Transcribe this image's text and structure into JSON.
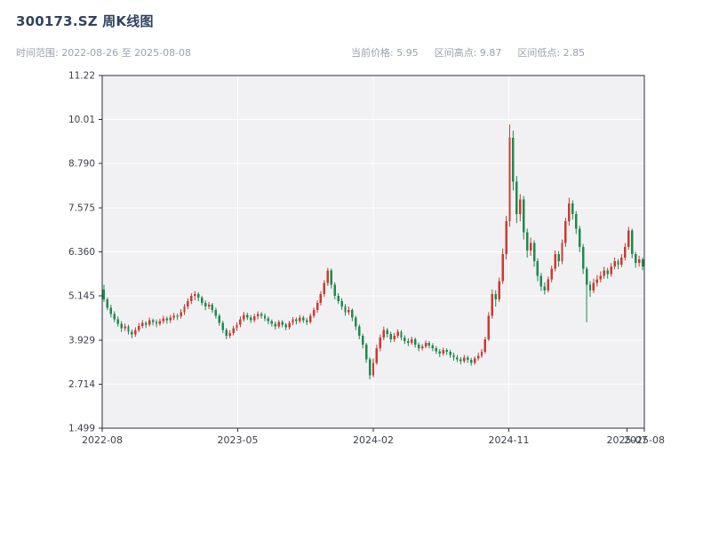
{
  "header": {
    "title": "300173.SZ 周K线图",
    "time_range": "时间范围: 2022-08-26 至 2025-08-08",
    "stats": [
      "当前价格: 5.95",
      "区间高点: 9.87",
      "区间低点: 2.85"
    ]
  },
  "colors": {
    "up": "#cc3a30",
    "down": "#1d8a4e",
    "plot_bg": "#f1f1f3",
    "grid": "#ffffff",
    "axis": "#2b2f36",
    "tick_text": "#3c4048",
    "title": "#32425e",
    "muted": "#9aa1ad"
  },
  "chart_data": {
    "type": "candlestick",
    "title": "300173.SZ 周K线图",
    "interval": "weekly",
    "start_date": "2022-08-26",
    "end_date": "2025-08-08",
    "current_price": 5.95,
    "range_high": 9.87,
    "range_low": 2.85,
    "xlabel": "",
    "ylabel": "",
    "grid": true,
    "ylim": [
      1.499,
      11.22
    ],
    "y_ticks": [
      "1.499",
      "2.714",
      "3.929",
      "5.145",
      "6.360",
      "7.575",
      "8.790",
      "10.01",
      "11.22"
    ],
    "x_ticks": [
      {
        "label": "2022-08",
        "pos": 0.0,
        "grid": true
      },
      {
        "label": "2023-05",
        "pos": 0.25,
        "grid": true
      },
      {
        "label": "2024-02",
        "pos": 0.5,
        "grid": true
      },
      {
        "label": "2024-11",
        "pos": 0.75,
        "grid": true
      },
      {
        "label": "2025-07",
        "pos": 0.968,
        "grid": false
      },
      {
        "label": "2025-08",
        "pos": 1.0,
        "grid": true
      }
    ],
    "candles": [
      [
        5.32,
        5.45,
        4.98,
        5.05
      ],
      [
        5.05,
        5.1,
        4.75,
        4.82
      ],
      [
        4.82,
        4.9,
        4.55,
        4.65
      ],
      [
        4.65,
        4.72,
        4.42,
        4.5
      ],
      [
        4.5,
        4.58,
        4.3,
        4.38
      ],
      [
        4.38,
        4.45,
        4.15,
        4.25
      ],
      [
        4.25,
        4.38,
        4.18,
        4.3
      ],
      [
        4.3,
        4.35,
        4.08,
        4.15
      ],
      [
        4.15,
        4.22,
        3.98,
        4.08
      ],
      [
        4.08,
        4.28,
        4.02,
        4.2
      ],
      [
        4.2,
        4.4,
        4.15,
        4.32
      ],
      [
        4.32,
        4.48,
        4.25,
        4.4
      ],
      [
        4.4,
        4.45,
        4.26,
        4.35
      ],
      [
        4.35,
        4.55,
        4.3,
        4.48
      ],
      [
        4.48,
        4.52,
        4.33,
        4.42
      ],
      [
        4.42,
        4.5,
        4.28,
        4.38
      ],
      [
        4.38,
        4.52,
        4.32,
        4.45
      ],
      [
        4.45,
        4.6,
        4.38,
        4.52
      ],
      [
        4.52,
        4.58,
        4.38,
        4.47
      ],
      [
        4.47,
        4.62,
        4.4,
        4.55
      ],
      [
        4.55,
        4.68,
        4.48,
        4.6
      ],
      [
        4.6,
        4.66,
        4.48,
        4.58
      ],
      [
        4.58,
        4.78,
        4.52,
        4.7
      ],
      [
        4.7,
        4.92,
        4.62,
        4.85
      ],
      [
        4.85,
        5.08,
        4.78,
        5.0
      ],
      [
        5.0,
        5.22,
        4.92,
        5.15
      ],
      [
        5.15,
        5.28,
        5.02,
        5.2
      ],
      [
        5.2,
        5.25,
        5.0,
        5.1
      ],
      [
        5.1,
        5.15,
        4.88,
        4.95
      ],
      [
        4.95,
        5.02,
        4.75,
        4.85
      ],
      [
        4.85,
        4.98,
        4.78,
        4.9
      ],
      [
        4.9,
        4.95,
        4.68,
        4.75
      ],
      [
        4.75,
        4.82,
        4.52,
        4.6
      ],
      [
        4.6,
        4.65,
        4.32,
        4.4
      ],
      [
        4.4,
        4.46,
        4.12,
        4.2
      ],
      [
        4.2,
        4.26,
        3.95,
        4.05
      ],
      [
        4.05,
        4.2,
        3.98,
        4.12
      ],
      [
        4.12,
        4.32,
        4.06,
        4.25
      ],
      [
        4.25,
        4.42,
        4.18,
        4.35
      ],
      [
        4.35,
        4.58,
        4.28,
        4.5
      ],
      [
        4.5,
        4.7,
        4.44,
        4.62
      ],
      [
        4.62,
        4.68,
        4.48,
        4.55
      ],
      [
        4.55,
        4.62,
        4.4,
        4.48
      ],
      [
        4.48,
        4.65,
        4.42,
        4.58
      ],
      [
        4.58,
        4.72,
        4.5,
        4.65
      ],
      [
        4.65,
        4.7,
        4.52,
        4.6
      ],
      [
        4.6,
        4.66,
        4.45,
        4.52
      ],
      [
        4.52,
        4.58,
        4.36,
        4.45
      ],
      [
        4.45,
        4.5,
        4.3,
        4.38
      ],
      [
        4.38,
        4.44,
        4.22,
        4.3
      ],
      [
        4.3,
        4.48,
        4.25,
        4.42
      ],
      [
        4.42,
        4.48,
        4.28,
        4.35
      ],
      [
        4.35,
        4.4,
        4.2,
        4.28
      ],
      [
        4.28,
        4.46,
        4.22,
        4.4
      ],
      [
        4.4,
        4.56,
        4.34,
        4.5
      ],
      [
        4.5,
        4.55,
        4.36,
        4.45
      ],
      [
        4.45,
        4.62,
        4.4,
        4.55
      ],
      [
        4.55,
        4.6,
        4.4,
        4.48
      ],
      [
        4.48,
        4.54,
        4.34,
        4.42
      ],
      [
        4.42,
        4.66,
        4.38,
        4.6
      ],
      [
        4.6,
        4.82,
        4.54,
        4.75
      ],
      [
        4.75,
        5.02,
        4.68,
        4.95
      ],
      [
        4.95,
        5.28,
        4.88,
        5.2
      ],
      [
        5.2,
        5.58,
        5.12,
        5.5
      ],
      [
        5.5,
        5.92,
        5.42,
        5.85
      ],
      [
        5.85,
        5.9,
        5.35,
        5.45
      ],
      [
        5.45,
        5.52,
        5.05,
        5.15
      ],
      [
        5.15,
        5.22,
        4.92,
        5.0
      ],
      [
        5.0,
        5.08,
        4.76,
        4.85
      ],
      [
        4.85,
        4.92,
        4.6,
        4.7
      ],
      [
        4.7,
        4.85,
        4.62,
        4.75
      ],
      [
        4.75,
        4.8,
        4.45,
        4.55
      ],
      [
        4.55,
        4.6,
        4.2,
        4.3
      ],
      [
        4.3,
        4.36,
        3.95,
        4.05
      ],
      [
        4.05,
        4.1,
        3.7,
        3.8
      ],
      [
        3.8,
        3.85,
        3.3,
        3.4
      ],
      [
        3.4,
        3.45,
        2.85,
        2.95
      ],
      [
        2.95,
        3.42,
        2.9,
        3.3
      ],
      [
        3.3,
        3.8,
        3.25,
        3.7
      ],
      [
        3.7,
        4.08,
        3.62,
        4.0
      ],
      [
        4.0,
        4.3,
        3.92,
        4.2
      ],
      [
        4.2,
        4.26,
        4.0,
        4.1
      ],
      [
        4.1,
        4.16,
        3.86,
        3.95
      ],
      [
        3.95,
        4.12,
        3.88,
        4.05
      ],
      [
        4.05,
        4.22,
        3.98,
        4.15
      ],
      [
        4.15,
        4.2,
        3.92,
        4.0
      ],
      [
        4.0,
        4.06,
        3.82,
        3.9
      ],
      [
        3.9,
        3.98,
        3.76,
        3.85
      ],
      [
        3.85,
        4.02,
        3.8,
        3.95
      ],
      [
        3.95,
        4.0,
        3.72,
        3.8
      ],
      [
        3.8,
        3.86,
        3.62,
        3.7
      ],
      [
        3.7,
        3.82,
        3.64,
        3.75
      ],
      [
        3.75,
        3.92,
        3.7,
        3.85
      ],
      [
        3.85,
        3.9,
        3.7,
        3.78
      ],
      [
        3.78,
        3.84,
        3.62,
        3.7
      ],
      [
        3.7,
        3.76,
        3.54,
        3.62
      ],
      [
        3.62,
        3.68,
        3.46,
        3.55
      ],
      [
        3.55,
        3.72,
        3.5,
        3.65
      ],
      [
        3.65,
        3.7,
        3.52,
        3.6
      ],
      [
        3.6,
        3.66,
        3.44,
        3.52
      ],
      [
        3.52,
        3.58,
        3.36,
        3.45
      ],
      [
        3.45,
        3.52,
        3.32,
        3.4
      ],
      [
        3.4,
        3.46,
        3.26,
        3.35
      ],
      [
        3.35,
        3.52,
        3.3,
        3.45
      ],
      [
        3.45,
        3.5,
        3.3,
        3.38
      ],
      [
        3.38,
        3.44,
        3.22,
        3.3
      ],
      [
        3.3,
        3.48,
        3.25,
        3.42
      ],
      [
        3.42,
        3.58,
        3.36,
        3.5
      ],
      [
        3.5,
        3.68,
        3.44,
        3.6
      ],
      [
        3.6,
        4.02,
        3.55,
        3.95
      ],
      [
        3.95,
        4.7,
        3.9,
        4.6
      ],
      [
        4.6,
        5.32,
        4.52,
        5.2
      ],
      [
        5.2,
        5.3,
        4.85,
        5.05
      ],
      [
        5.05,
        5.65,
        4.98,
        5.55
      ],
      [
        5.55,
        6.45,
        5.48,
        6.3
      ],
      [
        6.3,
        7.35,
        6.15,
        7.2
      ],
      [
        7.2,
        9.87,
        7.05,
        9.5
      ],
      [
        9.5,
        9.7,
        8.05,
        8.3
      ],
      [
        8.3,
        8.45,
        7.15,
        7.4
      ],
      [
        7.4,
        7.95,
        7.2,
        7.8
      ],
      [
        7.8,
        7.9,
        6.7,
        6.9
      ],
      [
        6.9,
        7.0,
        6.2,
        6.4
      ],
      [
        6.4,
        6.75,
        6.25,
        6.6
      ],
      [
        6.6,
        6.68,
        5.95,
        6.1
      ],
      [
        6.1,
        6.18,
        5.55,
        5.7
      ],
      [
        5.7,
        5.78,
        5.28,
        5.4
      ],
      [
        5.4,
        5.52,
        5.18,
        5.3
      ],
      [
        5.3,
        5.68,
        5.24,
        5.6
      ],
      [
        5.6,
        5.98,
        5.52,
        5.9
      ],
      [
        5.9,
        6.4,
        5.82,
        6.3
      ],
      [
        6.3,
        6.38,
        5.95,
        6.1
      ],
      [
        6.1,
        6.7,
        6.02,
        6.6
      ],
      [
        6.6,
        7.3,
        6.5,
        7.2
      ],
      [
        7.2,
        7.85,
        7.08,
        7.7
      ],
      [
        7.7,
        7.78,
        7.25,
        7.4
      ],
      [
        7.4,
        7.48,
        6.85,
        7.0
      ],
      [
        7.0,
        7.08,
        6.35,
        6.5
      ],
      [
        6.5,
        6.58,
        5.75,
        5.9
      ],
      [
        5.9,
        5.95,
        4.42,
        5.45
      ],
      [
        5.45,
        5.55,
        5.12,
        5.3
      ],
      [
        5.3,
        5.62,
        5.22,
        5.5
      ],
      [
        5.5,
        5.72,
        5.4,
        5.6
      ],
      [
        5.6,
        5.82,
        5.52,
        5.7
      ],
      [
        5.7,
        5.95,
        5.62,
        5.85
      ],
      [
        5.85,
        5.92,
        5.62,
        5.75
      ],
      [
        5.75,
        6.05,
        5.68,
        5.95
      ],
      [
        5.95,
        6.2,
        5.88,
        6.1
      ],
      [
        6.1,
        6.16,
        5.88,
        6.0
      ],
      [
        6.0,
        6.3,
        5.94,
        6.2
      ],
      [
        6.2,
        6.6,
        6.12,
        6.5
      ],
      [
        6.5,
        7.05,
        6.42,
        6.95
      ],
      [
        6.95,
        7.0,
        6.18,
        6.3
      ],
      [
        6.3,
        6.36,
        5.92,
        6.05
      ],
      [
        6.05,
        6.25,
        5.95,
        6.15
      ],
      [
        6.15,
        6.2,
        5.85,
        5.95
      ]
    ]
  }
}
